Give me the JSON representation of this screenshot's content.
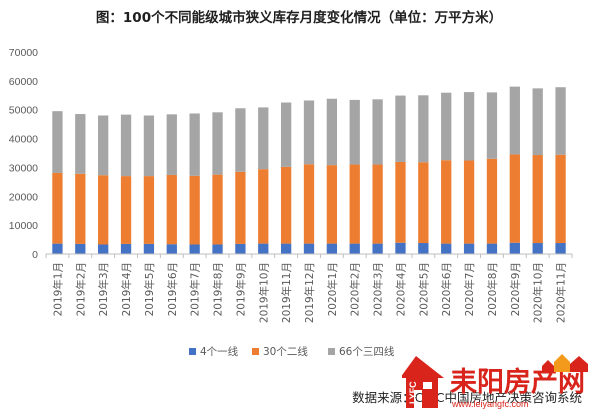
{
  "title": "图：100个不同能级城市狭义库存月度变化情况（单位：万平方米）",
  "source": "数据来源：CRIC中国房地产决策咨询系统",
  "watermark": {
    "brand_text": "耒阳房产网",
    "latin_text": "LYFC",
    "url_text": "www.leiyangfc.com",
    "colors": {
      "red": "#d9241c",
      "orange": "#f39a1c"
    }
  },
  "chart_data": {
    "type": "bar",
    "stacked": true,
    "categories": [
      "2019年1月",
      "2019年2月",
      "2019年3月",
      "2019年4月",
      "2019年5月",
      "2019年6月",
      "2019年7月",
      "2019年8月",
      "2019年9月",
      "2019年10月",
      "2019年11月",
      "2019年12月",
      "2020年1月",
      "2020年2月",
      "2020年3月",
      "2020年4月",
      "2020年5月",
      "2020年6月",
      "2020年7月",
      "2020年8月",
      "2020年9月",
      "2020年10月",
      "2020年11月"
    ],
    "series": [
      {
        "name": "4个一线",
        "color": "#4472c4",
        "values": [
          3600,
          3500,
          3300,
          3500,
          3500,
          3400,
          3300,
          3300,
          3500,
          3600,
          3600,
          3600,
          3600,
          3600,
          3600,
          3900,
          3800,
          3600,
          3600,
          3600,
          3900,
          3800,
          3800
        ]
      },
      {
        "name": "30个二线",
        "color": "#ed7d31",
        "values": [
          24500,
          24300,
          24000,
          23500,
          23500,
          24000,
          23800,
          24200,
          25000,
          25800,
          26600,
          27500,
          27200,
          27400,
          27400,
          28000,
          28000,
          28900,
          28800,
          29400,
          30600,
          30500,
          30600
        ]
      },
      {
        "name": "66个三四线",
        "color": "#a5a5a5",
        "values": [
          21400,
          20700,
          20700,
          21300,
          21000,
          21000,
          21600,
          21600,
          22000,
          21400,
          22300,
          22100,
          23000,
          22400,
          22600,
          23000,
          23200,
          23400,
          23700,
          23000,
          23500,
          23100,
          23400
        ]
      }
    ],
    "ylim": [
      0,
      70000
    ],
    "yticks": [
      0,
      10000,
      20000,
      30000,
      40000,
      50000,
      60000,
      70000
    ],
    "grid": false,
    "legend_position": "bottom"
  }
}
